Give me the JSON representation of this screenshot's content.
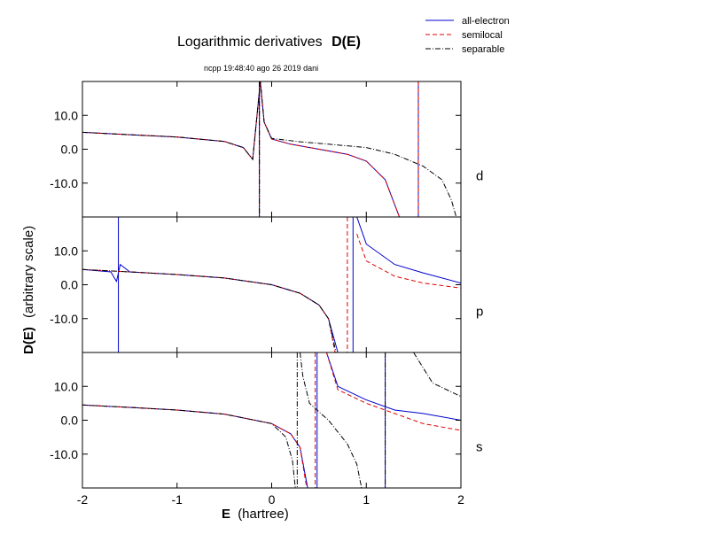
{
  "title": "Logarithmic derivatives",
  "title_bold": "D(E)",
  "subtitle": "ncpp 19:48:40 ago 26 2019 dani",
  "colors": {
    "all_electron": "#0000cc",
    "semilocal": "#dd0000",
    "separable": "#000000"
  },
  "legend": [
    "all-electron",
    "semilocal",
    "separable"
  ],
  "chart_data": {
    "type": "line",
    "title": "Logarithmic derivatives D(E)",
    "subtitle": "ncpp 19:48:40 ago 26 2019 dani",
    "xlabel_bold": "E",
    "xlabel_rest": "(hartree)",
    "ylabel_bold": "D(E)",
    "ylabel_rest": "(arbitrary scale)",
    "xlim": [
      -2,
      2
    ],
    "ylim": [
      -20,
      20
    ],
    "x_ticks": [
      "-2",
      "-1",
      "0",
      "1",
      "2"
    ],
    "y_ticks": [
      "10.0",
      "0.0",
      "-10.0"
    ],
    "legend_position": "top-right",
    "panels": [
      {
        "label": "d",
        "series": [
          {
            "name": "all-electron",
            "style": "solid",
            "poles": [
              -0.13,
              1.55
            ],
            "x": [
              -2,
              -1.5,
              -1,
              -0.5,
              -0.3,
              -0.2,
              -0.12,
              -0.08,
              0,
              0.2,
              0.5,
              0.8,
              1.0,
              1.2,
              1.35
            ],
            "y": [
              5,
              4.3,
              3.6,
              2.3,
              0.5,
              -3,
              20,
              8,
              3,
              1.5,
              0,
              -1.5,
              -3.5,
              -9,
              -20
            ]
          },
          {
            "name": "semilocal",
            "style": "dashed",
            "poles": [
              -0.13,
              1.55
            ],
            "x": [
              -2,
              -1.5,
              -1,
              -0.5,
              -0.3,
              -0.2,
              -0.12,
              -0.08,
              0,
              0.2,
              0.5,
              0.8,
              1.0,
              1.2,
              1.35
            ],
            "y": [
              5,
              4.3,
              3.6,
              2.3,
              0.5,
              -3,
              20,
              8,
              3,
              1.5,
              0,
              -1.5,
              -3.5,
              -9,
              -20
            ]
          },
          {
            "name": "separable",
            "style": "dashdot",
            "poles": [
              -0.13
            ],
            "x": [
              -2,
              -1.5,
              -1,
              -0.5,
              -0.3,
              -0.2,
              -0.12,
              -0.08,
              0,
              0.3,
              0.6,
              1.0,
              1.3,
              1.6,
              1.8,
              1.9,
              1.95
            ],
            "y": [
              5,
              4.3,
              3.6,
              2.3,
              0.5,
              -3,
              20,
              8,
              3.2,
              2.2,
              1.5,
              0.5,
              -1.5,
              -5,
              -9,
              -15,
              -20
            ]
          }
        ]
      },
      {
        "label": "p",
        "series": [
          {
            "name": "all-electron",
            "style": "solid",
            "poles": [
              -1.62,
              0.86
            ],
            "x": [
              -2,
              -1.7,
              -1.64,
              -1.6,
              -1.5,
              -1.0,
              -0.5,
              0,
              0.3,
              0.5,
              0.6,
              0.7,
              0.9,
              1.0,
              1.3,
              1.6,
              2.0
            ],
            "y": [
              4.5,
              3.8,
              1,
              6,
              3.8,
              3,
              2,
              0,
              -2.5,
              -6,
              -10,
              -20,
              20,
              12,
              6,
              3.5,
              0.5
            ]
          },
          {
            "name": "semilocal",
            "style": "dashed",
            "poles": [
              0.8
            ],
            "x": [
              -2,
              -1.5,
              -1.0,
              -0.5,
              0,
              0.3,
              0.5,
              0.6,
              0.67,
              0.9,
              1.0,
              1.3,
              1.6,
              2.0
            ],
            "y": [
              4.5,
              3.8,
              3,
              2,
              0,
              -2.5,
              -6,
              -10,
              -20,
              15,
              7,
              2.5,
              0.5,
              -1
            ]
          },
          {
            "name": "separable",
            "style": "dashdot",
            "poles": [],
            "x": [
              -2,
              -1.5,
              -1.0,
              -0.5,
              0,
              0.3,
              0.5,
              0.6,
              0.68
            ],
            "y": [
              4.5,
              3.8,
              3,
              2,
              0,
              -2.5,
              -6,
              -10,
              -20
            ]
          }
        ]
      },
      {
        "label": "s",
        "series": [
          {
            "name": "all-electron",
            "style": "solid",
            "poles": [
              0.48,
              1.2
            ],
            "x": [
              -2,
              -1.5,
              -1.0,
              -0.5,
              0,
              0.2,
              0.3,
              0.38,
              0.58,
              0.7,
              1.0,
              1.3,
              1.6,
              2.0
            ],
            "y": [
              4.5,
              3.8,
              3,
              1.8,
              -1,
              -4,
              -8,
              -20,
              20,
              10,
              6,
              3,
              2,
              0
            ]
          },
          {
            "name": "semilocal",
            "style": "dashed",
            "poles": [
              0.46
            ],
            "x": [
              -2,
              -1.5,
              -1.0,
              -0.5,
              0,
              0.2,
              0.3,
              0.37,
              0.58,
              0.7,
              1.0,
              1.3,
              1.6,
              2.0
            ],
            "y": [
              4.5,
              3.8,
              3,
              1.8,
              -1,
              -4,
              -8,
              -20,
              20,
              9,
              5,
              2,
              -1,
              -3
            ]
          },
          {
            "name": "separable",
            "style": "dashdot",
            "poles": [
              0.27,
              1.2
            ],
            "x": [
              -2,
              -1.5,
              -1.0,
              -0.5,
              0,
              0.15,
              0.22,
              0.25,
              0.3,
              0.33,
              0.4,
              0.6,
              0.8,
              0.9,
              0.95,
              1.5,
              1.7,
              2.0
            ],
            "y": [
              4.5,
              3.8,
              3,
              1.8,
              -1,
              -5,
              -12,
              -20,
              20,
              13,
              5,
              0,
              -7,
              -13,
              -20,
              20,
              11,
              7
            ]
          }
        ]
      }
    ]
  }
}
